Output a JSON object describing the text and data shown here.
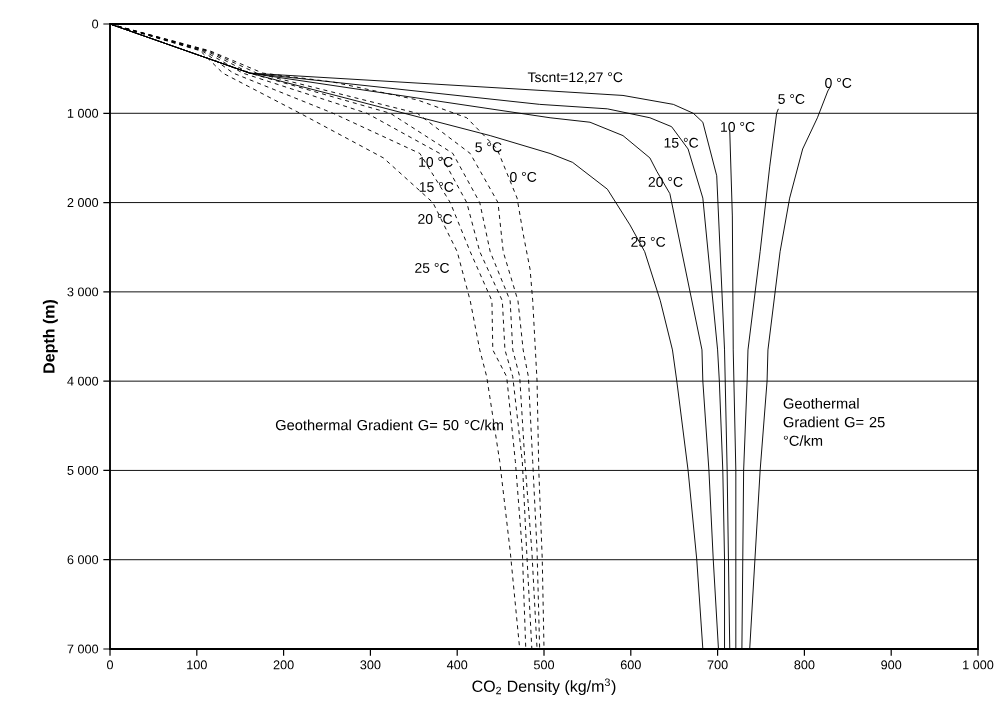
{
  "chart_data": {
    "type": "line",
    "xlabel": "CO$_{2}$ Density (kg/m$^{3}$)",
    "ylabel": "Depth (m)",
    "xlim": [
      0,
      1000
    ],
    "ylim": [
      7000,
      0
    ],
    "xticks": [
      0,
      100,
      200,
      300,
      400,
      500,
      600,
      700,
      800,
      900,
      {
        "value": 1000,
        "label": "1 000"
      }
    ],
    "yticks": [
      0,
      {
        "value": 1000,
        "label": "1 000"
      },
      {
        "value": 2000,
        "label": "2 000"
      },
      {
        "value": 3000,
        "label": "3 000"
      },
      {
        "value": 4000,
        "label": "4 000"
      },
      {
        "value": 5000,
        "label": "5 000"
      },
      {
        "value": 6000,
        "label": "6 000"
      },
      {
        "value": 7000,
        "label": "7 000"
      }
    ],
    "grid": "y",
    "marker": "none",
    "series": [
      {
        "name": "0 °C",
        "color": "#000000",
        "line_style": "solid",
        "x": [
          830,
          827,
          815,
          798,
          783,
          772,
          758,
          757,
          749,
          743,
          737
        ],
        "values": [
          700,
          750,
          1050,
          1400,
          1950,
          2550,
          3650,
          4000,
          5000,
          6000,
          7000
        ]
      },
      {
        "name": "5 °C",
        "color": "#000000",
        "line_style": "solid",
        "x": [
          770,
          768,
          760,
          749,
          735,
          734,
          730,
          729,
          728
        ],
        "values": [
          950,
          1000,
          1600,
          2550,
          3650,
          4000,
          5000,
          6000,
          7000
        ]
      },
      {
        "name": "10 °C",
        "color": "#000000",
        "line_style": "solid",
        "x": [
          714,
          717,
          718,
          721,
          721
        ],
        "values": [
          1200,
          2150,
          3650,
          5000,
          7000
        ]
      },
      {
        "name": "15 °C",
        "color": "#000000",
        "line_style": "solid",
        "x": [
          0,
          161,
          495,
          573,
          622,
          647,
          666,
          683,
          700,
          702,
          706,
          708,
          708
        ],
        "values": [
          0,
          550,
          900,
          950,
          1050,
          1150,
          1400,
          1950,
          3650,
          4000,
          5000,
          6000,
          7000
        ]
      },
      {
        "name": "20 °C",
        "color": "#000000",
        "line_style": "solid",
        "x": [
          0,
          161,
          507,
          553,
          591,
          622,
          630,
          645,
          682,
          683,
          690,
          695,
          701
        ],
        "values": [
          0,
          550,
          1050,
          1100,
          1250,
          1500,
          1650,
          1900,
          3650,
          4000,
          5000,
          6000,
          7000
        ]
      },
      {
        "name": "25 °C",
        "color": "#000000",
        "line_style": "solid",
        "x": [
          0,
          161,
          438,
          507,
          533,
          573,
          599,
          616,
          634,
          648,
          653,
          666,
          676,
          683
        ],
        "values": [
          0,
          550,
          1250,
          1450,
          1550,
          1850,
          2250,
          2550,
          3100,
          3650,
          4000,
          5000,
          6000,
          7000
        ]
      },
      {
        "name": "Tscnt=12,27 °C",
        "color": "#000000",
        "line_style": "solid",
        "x": [
          0,
          161,
          507,
          591,
          649,
          672,
          683,
          699,
          708,
          711,
          714
        ],
        "values": [
          0,
          550,
          750,
          800,
          900,
          1000,
          1100,
          1700,
          3650,
          5000,
          7000
        ]
      },
      {
        "name": "0 °C",
        "color": "#000000",
        "line_style": "dashed",
        "x": [
          0,
          115,
          176,
          257,
          354,
          411,
          446,
          469,
          476,
          484,
          487,
          492,
          494,
          498,
          500
        ],
        "values": [
          0,
          300,
          550,
          650,
          850,
          1050,
          1400,
          1950,
          2350,
          2750,
          3100,
          4000,
          5000,
          6000,
          7000
        ]
      },
      {
        "name": "5 °C",
        "color": "#000000",
        "line_style": "dashed",
        "x": [
          0,
          113,
          169,
          354,
          415,
          447,
          453,
          470,
          476,
          482,
          487,
          492,
          495
        ],
        "values": [
          0,
          300,
          550,
          1000,
          1450,
          2000,
          2550,
          3100,
          3650,
          3950,
          4900,
          5900,
          7000
        ]
      },
      {
        "name": "10 °C",
        "color": "#000000",
        "line_style": "dashed",
        "x": [
          0,
          111,
          161,
          323,
          395,
          426,
          438,
          461,
          464,
          472,
          478,
          486,
          492
        ],
        "values": [
          0,
          300,
          550,
          1000,
          1450,
          2000,
          2550,
          3100,
          3650,
          3950,
          4900,
          5900,
          7000
        ]
      },
      {
        "name": "15 °C",
        "color": "#000000",
        "line_style": "dashed",
        "x": [
          0,
          108,
          153,
          296,
          380,
          411,
          426,
          452,
          455,
          464,
          475,
          480,
          486
        ],
        "values": [
          0,
          300,
          550,
          1000,
          1450,
          2000,
          2550,
          3100,
          3650,
          3950,
          4900,
          5900,
          7000
        ]
      },
      {
        "name": "20 °C",
        "color": "#000000",
        "line_style": "dashed",
        "x": [
          0,
          106,
          142,
          257,
          357,
          392,
          415,
          440,
          441,
          457,
          467,
          475,
          479
        ],
        "values": [
          0,
          300,
          550,
          1000,
          1450,
          2000,
          2550,
          3100,
          3650,
          3950,
          4900,
          5900,
          7000
        ]
      },
      {
        "name": "25 °C",
        "color": "#000000",
        "line_style": "dashed",
        "x": [
          0,
          104,
          130,
          219,
          315,
          372,
          400,
          415,
          426,
          434,
          449,
          461,
          472
        ],
        "values": [
          0,
          300,
          550,
          1000,
          1500,
          2000,
          2550,
          3100,
          3650,
          3950,
          4900,
          5900,
          7000
        ]
      }
    ],
    "annotations": [
      "Geothermal Gradient G= 50 °C/km",
      "Geothermal Gradient G= 25 °C/km"
    ]
  }
}
